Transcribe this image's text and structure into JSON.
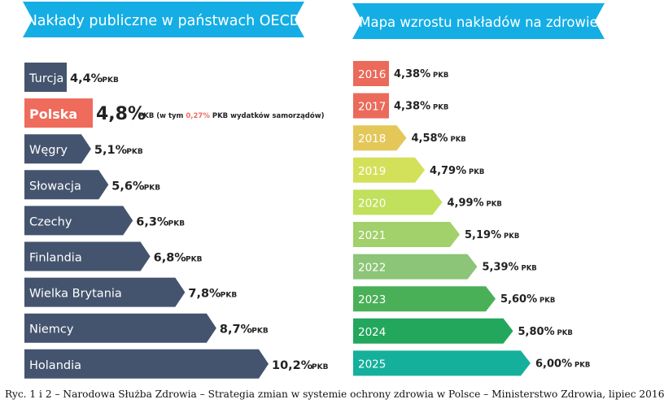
{
  "chart_data": [
    {
      "type": "bar",
      "title": "Nakłady publiczne w państwach OECD",
      "unit": "PKB",
      "categories": [
        "Turcja",
        "Polska",
        "Węgry",
        "Słowacja",
        "Czechy",
        "Finlandia",
        "Wielka Brytania",
        "Niemcy",
        "Holandia"
      ],
      "values": [
        4.4,
        4.8,
        5.1,
        5.6,
        6.3,
        6.8,
        7.8,
        8.7,
        10.2
      ],
      "value_labels": [
        "4,4%",
        "4,8%",
        "5,1%",
        "5,6%",
        "6,3%",
        "6,8%",
        "7,8%",
        "8,7%",
        "10,2%"
      ],
      "highlight": "Polska",
      "highlight_note": {
        "before": "PKB (w tym ",
        "accent": "0,27%",
        "after": " PKB wydatków samorządów)"
      },
      "colors": {
        "bar": "#44546e",
        "highlight": "#ef6b5b",
        "banner": "#14aee5"
      }
    },
    {
      "type": "bar",
      "title": "Mapa wzrostu nakładów na zdrowie",
      "unit": "PKB",
      "categories": [
        "2016",
        "2017",
        "2018",
        "2019",
        "2020",
        "2021",
        "2022",
        "2023",
        "2024",
        "2025"
      ],
      "values": [
        4.38,
        4.38,
        4.58,
        4.79,
        4.99,
        5.19,
        5.39,
        5.6,
        5.8,
        6.0
      ],
      "value_labels": [
        "4,38%",
        "4,38%",
        "4,58%",
        "4,79%",
        "4,99%",
        "5,19%",
        "5,39%",
        "5,60%",
        "5,80%",
        "6,00%"
      ],
      "colors": [
        "#ea6a5b",
        "#ea6a5b",
        "#e4c759",
        "#d3e15a",
        "#c1e05c",
        "#a2d06a",
        "#8cc577",
        "#4ab058",
        "#23a75c",
        "#14b09c"
      ],
      "banner_color": "#14aee5"
    }
  ],
  "caption": "Ryc. 1 i 2 – Narodowa Służba Zdrowia – Strategia zmian w systemie ochrony zdrowia w Polsce – Ministerstwo Zdrowia, lipiec 2016"
}
